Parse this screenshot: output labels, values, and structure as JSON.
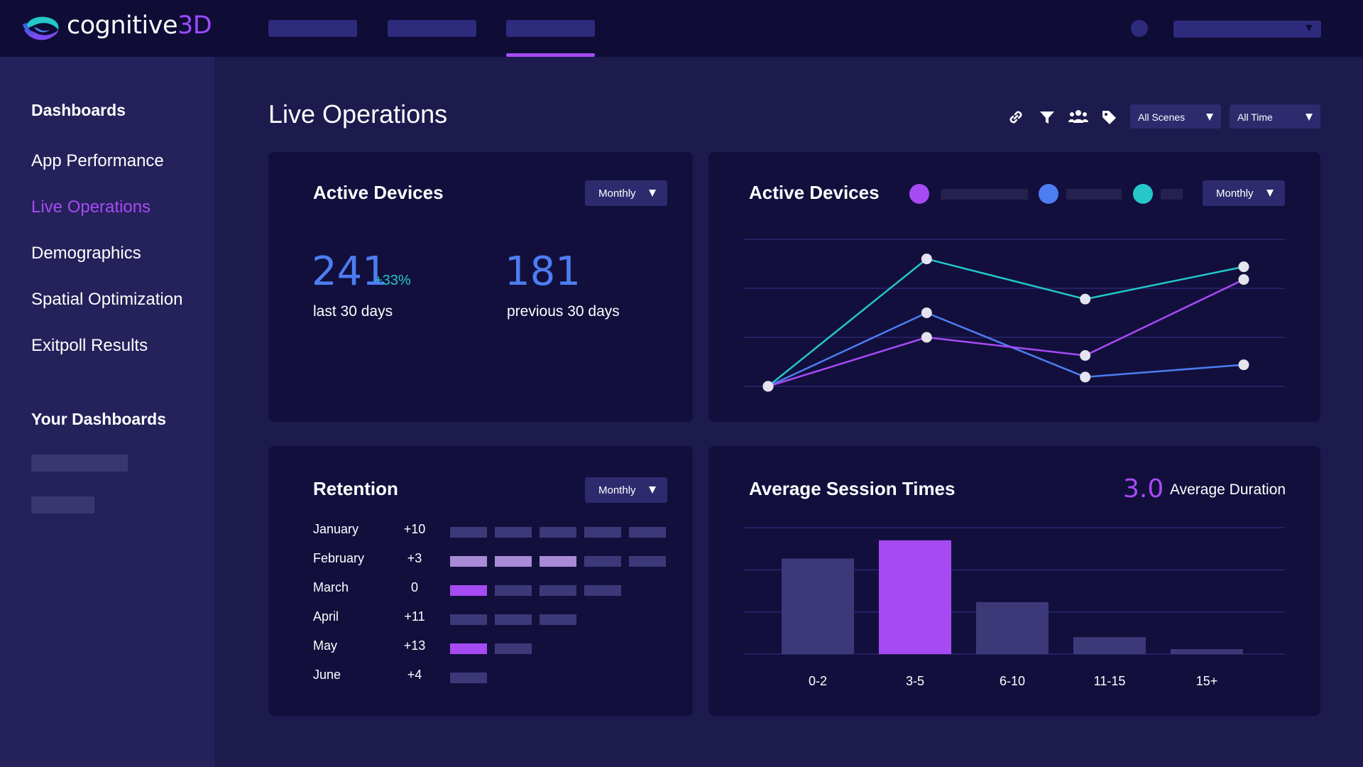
{
  "app": {
    "logo_text_main": "cognitive",
    "logo_text_accent": "3D"
  },
  "colors": {
    "accent_purple": "#a64bf4",
    "accent_blue": "#4d7df0",
    "accent_teal": "#25c7c9",
    "background": "#1d1a4d",
    "card": "#120f3d"
  },
  "sidebar": {
    "heading": "Dashboards",
    "items": [
      {
        "label": "App Performance",
        "active": false
      },
      {
        "label": "Live Operations",
        "active": true
      },
      {
        "label": "Demographics",
        "active": false
      },
      {
        "label": "Spatial Optimization",
        "active": false
      },
      {
        "label": "Exitpoll Results",
        "active": false
      }
    ],
    "your_heading": "Your Dashboards"
  },
  "header": {
    "title": "Live Operations",
    "icons": [
      "link-icon",
      "filter-icon",
      "users-icon",
      "tag-icon"
    ],
    "scene_select": "All Scenes",
    "time_select": "All Time"
  },
  "active_devices_stat": {
    "title": "Active Devices",
    "period": "Monthly",
    "current": "241",
    "change": "+33%",
    "current_label": "last 30 days",
    "previous": "181",
    "previous_label": "previous 30 days"
  },
  "active_devices_chart": {
    "title": "Active Devices",
    "period": "Monthly"
  },
  "retention": {
    "title": "Retention",
    "period": "Monthly",
    "rows": [
      {
        "month": "January",
        "delta": "+10",
        "cells": [
          "dim",
          "dim",
          "dim",
          "dim",
          "dim"
        ]
      },
      {
        "month": "February",
        "delta": "+3",
        "cells": [
          "light",
          "light",
          "light",
          "dim",
          "dim"
        ]
      },
      {
        "month": "March",
        "delta": "0",
        "cells": [
          "bright",
          "dim",
          "dim",
          "dim"
        ]
      },
      {
        "month": "April",
        "delta": "+11",
        "cells": [
          "dim",
          "dim",
          "dim"
        ]
      },
      {
        "month": "May",
        "delta": "+13",
        "cells": [
          "bright",
          "dim"
        ]
      },
      {
        "month": "June",
        "delta": "+4",
        "cells": [
          "dim"
        ]
      }
    ],
    "cell_colors": {
      "dim": "#3d3979",
      "light": "#a98ad6",
      "bright": "#a64bf4"
    }
  },
  "session_times": {
    "title": "Average Session Times",
    "average_value": "3.0",
    "average_label": "Average Duration"
  },
  "chart_data": [
    {
      "type": "line",
      "title": "Active Devices",
      "x": [
        0,
        1,
        2,
        3
      ],
      "ylim": [
        0,
        3
      ],
      "grid": true,
      "legend": "top",
      "series": [
        {
          "color": "#25c7c9",
          "values": [
            0,
            2.6,
            1.78,
            2.44
          ]
        },
        {
          "color": "#4d7df0",
          "values": [
            0,
            1.5,
            0.19,
            0.44
          ]
        },
        {
          "color": "#a64bf4",
          "values": [
            0,
            1.0,
            0.63,
            2.18
          ]
        }
      ]
    },
    {
      "type": "bar",
      "title": "Average Session Times",
      "categories": [
        "0-2",
        "3-5",
        "6-10",
        "11-15",
        "15+"
      ],
      "values": [
        6.8,
        8.1,
        3.7,
        1.2,
        0.35
      ],
      "highlight_index": 1,
      "ylim": [
        0,
        9
      ],
      "grid": true
    }
  ]
}
